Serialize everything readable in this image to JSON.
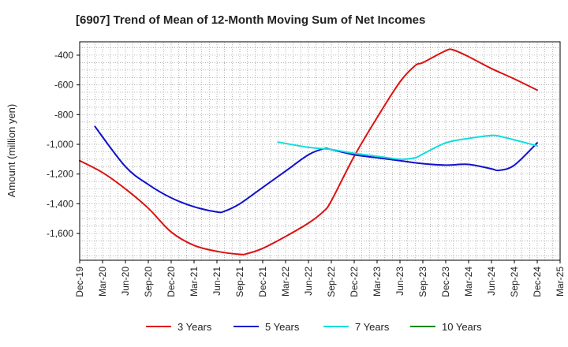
{
  "chart_data": {
    "type": "line",
    "title": "[6907]  Trend of Mean of 12-Month Moving Sum of Net Incomes",
    "ylabel": "Amount (million yen)",
    "xlabel": "",
    "ylim": [
      -1780,
      -310
    ],
    "y_ticks": [
      -400,
      -600,
      -800,
      -1000,
      -1200,
      -1400,
      -1600
    ],
    "y_tick_labels": [
      "-400",
      "-600",
      "-800",
      "-1,000",
      "-1,200",
      "-1,400",
      "-1,600"
    ],
    "x_range": [
      "2019-12",
      "2025-03"
    ],
    "x_ticks": [
      "2019-12",
      "2020-03",
      "2020-06",
      "2020-09",
      "2020-12",
      "2021-03",
      "2021-06",
      "2021-09",
      "2021-12",
      "2022-03",
      "2022-06",
      "2022-09",
      "2022-12",
      "2023-03",
      "2023-06",
      "2023-09",
      "2023-12",
      "2024-03",
      "2024-06",
      "2024-09",
      "2024-12",
      "2025-03"
    ],
    "x_tick_labels": [
      "Dec-19",
      "Mar-20",
      "Jun-20",
      "Sep-20",
      "Dec-20",
      "Mar-21",
      "Jun-21",
      "Sep-21",
      "Dec-21",
      "Mar-22",
      "Jun-22",
      "Sep-22",
      "Dec-22",
      "Mar-23",
      "Jun-23",
      "Sep-23",
      "Dec-23",
      "Mar-24",
      "Jun-24",
      "Sep-24",
      "Dec-24",
      "Mar-25"
    ],
    "grid": true,
    "legend_position": "bottom",
    "series": [
      {
        "name": "3 Years",
        "color": "#dd1111",
        "x": [
          "2019-12",
          "2020-03",
          "2020-06",
          "2020-09",
          "2020-12",
          "2021-03",
          "2021-06",
          "2021-09",
          "2021-10",
          "2021-12",
          "2022-03",
          "2022-06",
          "2022-08",
          "2022-09",
          "2022-12",
          "2023-03",
          "2023-06",
          "2023-08",
          "2023-09",
          "2023-12",
          "2024-01",
          "2024-03",
          "2024-06",
          "2024-09",
          "2024-12"
        ],
        "values": [
          -1110,
          -1190,
          -1300,
          -1430,
          -1590,
          -1680,
          -1720,
          -1740,
          -1735,
          -1700,
          -1620,
          -1530,
          -1450,
          -1380,
          -1080,
          -820,
          -580,
          -470,
          -450,
          -370,
          -365,
          -410,
          -490,
          -560,
          -635
        ]
      },
      {
        "name": "5 Years",
        "color": "#1111cc",
        "x": [
          "2020-02",
          "2020-06",
          "2020-09",
          "2020-12",
          "2021-03",
          "2021-06",
          "2021-07",
          "2021-09",
          "2021-12",
          "2022-03",
          "2022-06",
          "2022-08",
          "2022-09",
          "2022-12",
          "2023-03",
          "2023-06",
          "2023-09",
          "2023-12",
          "2024-03",
          "2024-06",
          "2024-07",
          "2024-09",
          "2024-12"
        ],
        "values": [
          -880,
          -1150,
          -1270,
          -1360,
          -1420,
          -1455,
          -1450,
          -1400,
          -1290,
          -1180,
          -1070,
          -1030,
          -1035,
          -1070,
          -1090,
          -1110,
          -1130,
          -1140,
          -1135,
          -1165,
          -1175,
          -1140,
          -990
        ]
      },
      {
        "name": "7 Years",
        "color": "#11dddd",
        "x": [
          "2022-02",
          "2022-06",
          "2022-09",
          "2022-12",
          "2023-03",
          "2023-06",
          "2023-08",
          "2023-09",
          "2023-12",
          "2024-03",
          "2024-06",
          "2024-07",
          "2024-09",
          "2024-12"
        ],
        "values": [
          -985,
          -1020,
          -1035,
          -1060,
          -1080,
          -1100,
          -1090,
          -1065,
          -990,
          -960,
          -940,
          -945,
          -970,
          -1010
        ]
      },
      {
        "name": "10 Years",
        "color": "#118811",
        "x": [],
        "values": []
      }
    ]
  }
}
